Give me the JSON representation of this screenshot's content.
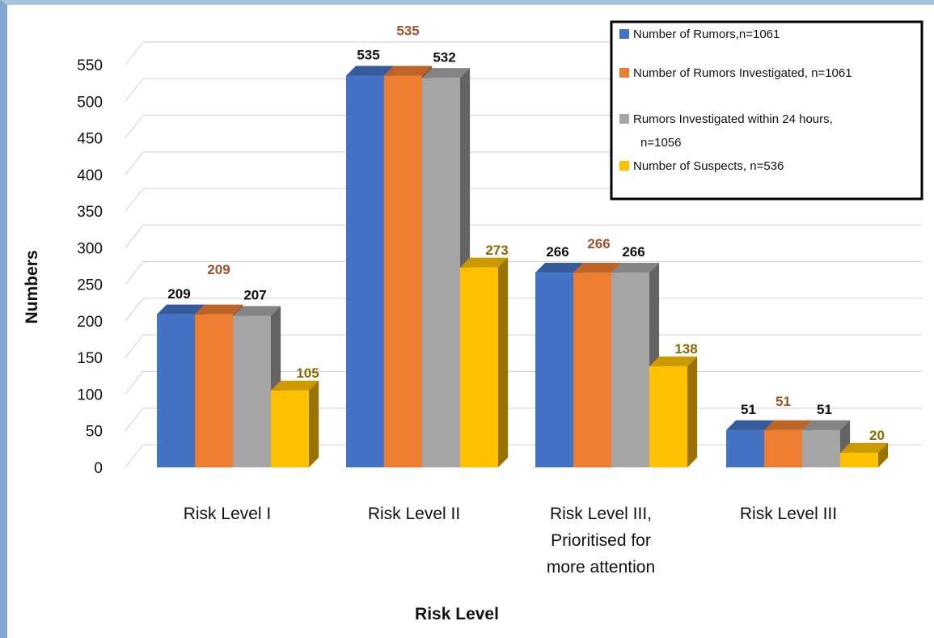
{
  "chart_data": {
    "type": "bar",
    "title": "",
    "xlabel": "Risk Level",
    "ylabel": "Numbers",
    "ylim": [
      0,
      550
    ],
    "yticks": [
      0,
      50,
      100,
      150,
      200,
      250,
      300,
      350,
      400,
      450,
      500,
      550
    ],
    "grid": true,
    "legend_position": "top-right",
    "categories": [
      [
        "Risk Level I"
      ],
      [
        "Risk Level II"
      ],
      [
        "Risk Level III,",
        "Prioritised for",
        "more attention"
      ],
      [
        "Risk Level III"
      ]
    ],
    "series": [
      {
        "name": "Number of Rumors,n=1061",
        "color": "#4472c4",
        "label_color": "#111111",
        "label_bold": true,
        "values": [
          209,
          535,
          266,
          51
        ]
      },
      {
        "name": "Number of Rumors Investigated, n=1061",
        "color": "#ed7d31",
        "label_color": "#a0522d",
        "label_bold": false,
        "values": [
          209,
          535,
          266,
          51
        ]
      },
      {
        "name": "Rumors Investigated within 24 hours, n=1056",
        "color": "#a5a5a5",
        "label_color": "#111111",
        "label_bold": true,
        "values": [
          207,
          532,
          266,
          51
        ]
      },
      {
        "name": "Number of Suspects, n=536",
        "color": "#ffc000",
        "label_color": "#8a6a00",
        "label_bold": true,
        "values": [
          105,
          273,
          138,
          20
        ]
      }
    ]
  }
}
